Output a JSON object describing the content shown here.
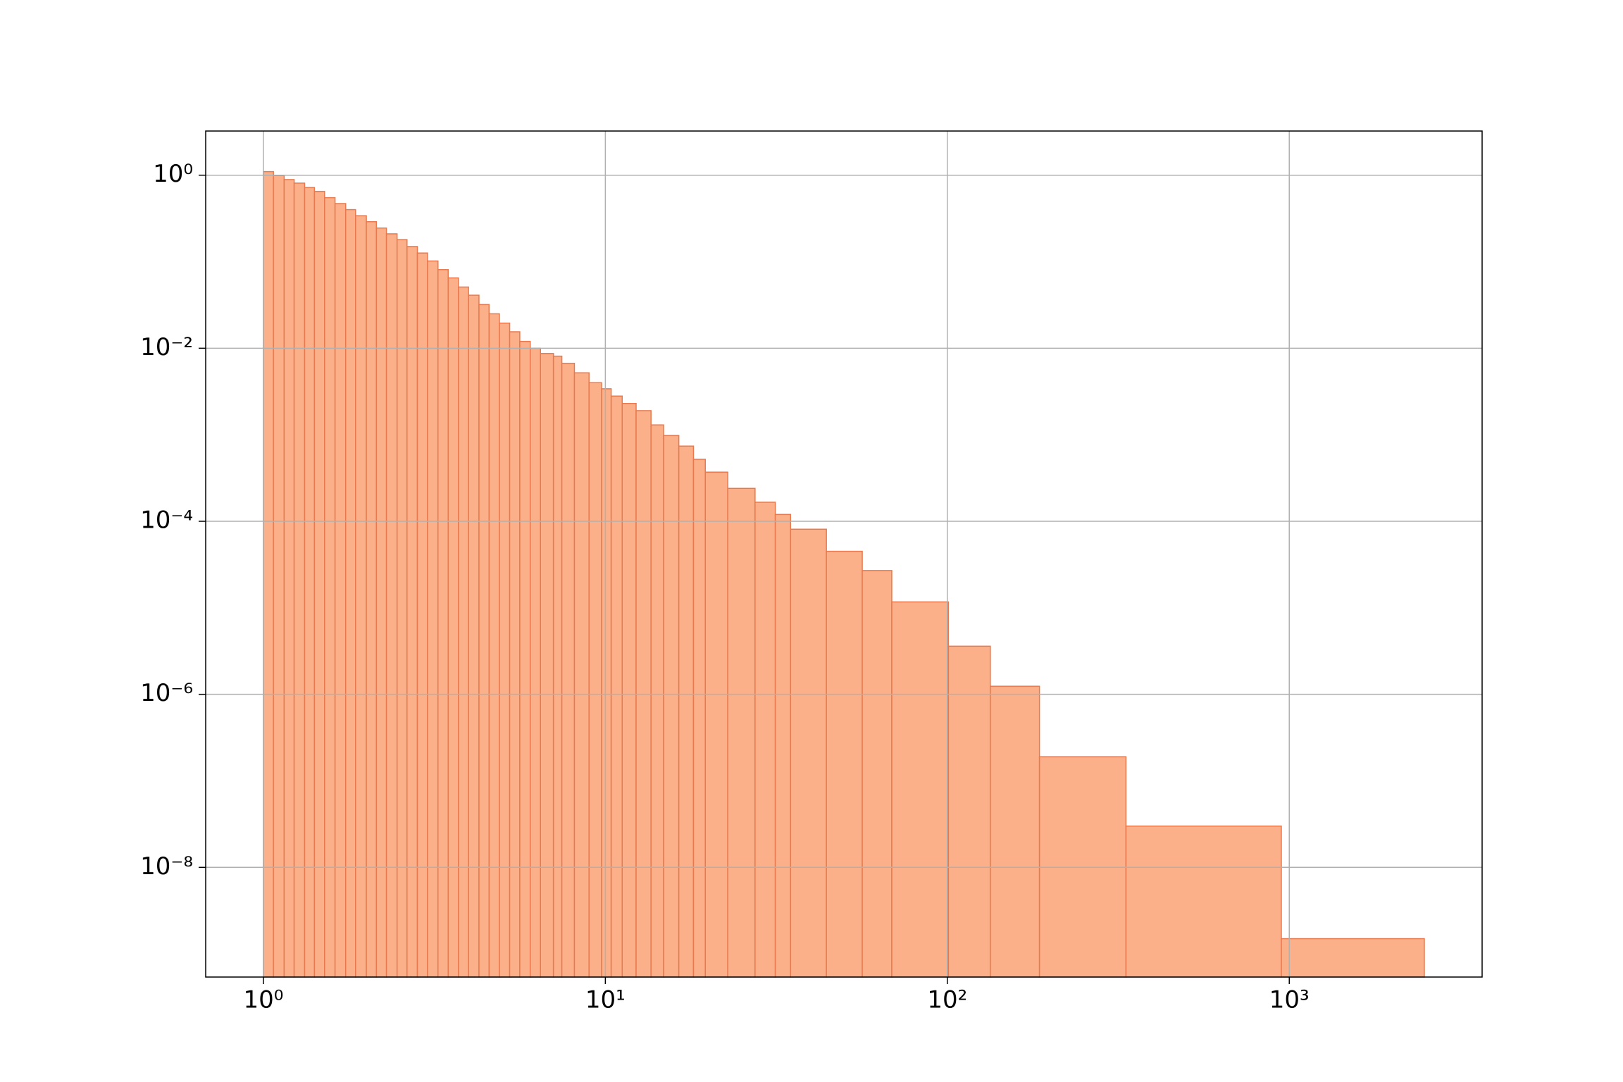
{
  "chart_data": {
    "type": "histogram",
    "bins": [
      1.0,
      1.07,
      1.15,
      1.23,
      1.32,
      1.41,
      1.51,
      1.62,
      1.74,
      1.86,
      2.0,
      2.14,
      2.29,
      2.46,
      2.63,
      2.82,
      3.02,
      3.24,
      3.47,
      3.72,
      3.98,
      4.27,
      4.57,
      4.9,
      5.25,
      5.62,
      6.03,
      6.46,
      7.05,
      7.46,
      8.12,
      8.96,
      9.75,
      10.4,
      11.2,
      12.3,
      13.6,
      14.8,
      16.4,
      18.1,
      19.6,
      22.8,
      27.4,
      31.4,
      34.8,
      44.3,
      56.4,
      68.8,
      100.7,
      133.6,
      186,
      333,
      948,
      2483
    ],
    "counts": [
      1.1,
      0.99,
      0.89,
      0.81,
      0.72,
      0.65,
      0.55,
      0.47,
      0.4,
      0.34,
      0.29,
      0.245,
      0.21,
      0.18,
      0.15,
      0.126,
      0.102,
      0.081,
      0.065,
      0.051,
      0.041,
      0.032,
      0.025,
      0.0195,
      0.0155,
      0.012,
      0.01,
      0.0087,
      0.0081,
      0.0067,
      0.0052,
      0.004,
      0.0034,
      0.0028,
      0.0023,
      0.0019,
      0.0013,
      0.00098,
      0.00074,
      0.00052,
      0.00037,
      0.00024,
      0.000166,
      0.00012,
      8.1e-05,
      4.5e-05,
      2.7e-05,
      1.17e-05,
      3.6e-06,
      1.24e-06,
      1.9e-07,
      3e-08,
      1.5e-09
    ],
    "color": "#fcb08a",
    "edgecolor": "#e8794e",
    "xlim": [
      0.678,
      3664
    ],
    "ylim": [
      5.4e-10,
      3.24
    ],
    "xscale": "log",
    "yscale": "log",
    "grid": true,
    "xticks": [
      {
        "value": 1,
        "label": "10⁰"
      },
      {
        "value": 10,
        "label": "10¹"
      },
      {
        "value": 100,
        "label": "10²"
      },
      {
        "value": 1000,
        "label": "10³"
      }
    ],
    "yticks": [
      {
        "value": 1,
        "label": "10⁰"
      },
      {
        "value": 0.01,
        "label": "10⁻²"
      },
      {
        "value": 0.0001,
        "label": "10⁻⁴"
      },
      {
        "value": 1e-06,
        "label": "10⁻⁶"
      },
      {
        "value": 1e-08,
        "label": "10⁻⁸"
      }
    ]
  }
}
